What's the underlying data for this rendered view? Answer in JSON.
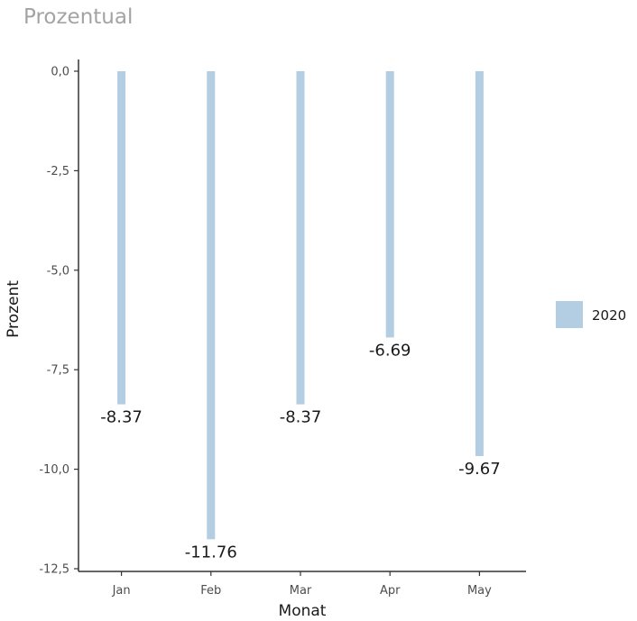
{
  "title": "Prozentual",
  "chart_data": {
    "type": "bar",
    "categories": [
      "Jan",
      "Feb",
      "Mar",
      "Apr",
      "May"
    ],
    "series": [
      {
        "name": "2020",
        "values": [
          -8.37,
          -11.76,
          -8.37,
          -6.69,
          -9.67
        ],
        "color": "#b3cde3"
      }
    ],
    "data_labels": [
      "-8.37",
      "-11.76",
      "-8.37",
      "-6.69",
      "-9.67"
    ],
    "xlabel": "Monat",
    "ylabel": "Prozent",
    "ylim": [
      -12.5,
      0
    ],
    "yticks": [
      0,
      -2.5,
      -5,
      -7.5,
      -10,
      -12.5
    ],
    "ytick_labels": [
      "0,0",
      "-2,5",
      "-5,0",
      "-7,5",
      "-10,0",
      "-12,5"
    ],
    "legend": {
      "position": "right",
      "entries": [
        "2020"
      ]
    },
    "grid": false
  }
}
